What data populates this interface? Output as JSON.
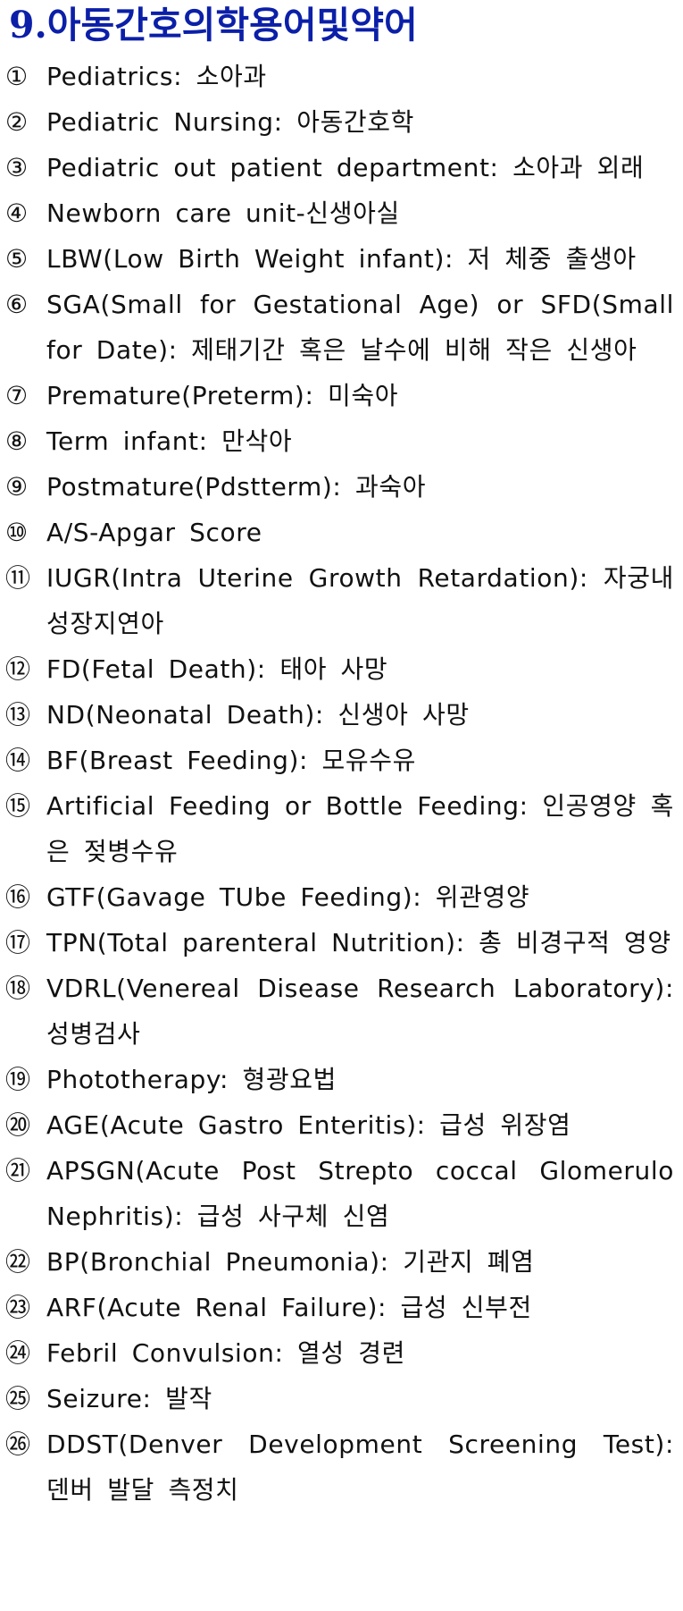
{
  "heading": {
    "title": "9.아동간호의학용어및약어"
  },
  "terms": [
    {
      "num": "①",
      "text": "Pediatrics: 소아과"
    },
    {
      "num": "②",
      "text": "Pediatric Nursing: 아동간호학"
    },
    {
      "num": "③",
      "text": "Pediatric out patient department: 소아과 외래"
    },
    {
      "num": "④",
      "text": "Newborn care unit-신생아실"
    },
    {
      "num": "⑤",
      "text": "LBW(Low Birth Weight infant): 저 체중 출생아"
    },
    {
      "num": "⑥",
      "text": "SGA(Small for Gestational Age) or SFD(Small for Date): 제태기간 혹은 날수에 비해 작은 신생아"
    },
    {
      "num": "⑦",
      "text": "Premature(Preterm): 미숙아"
    },
    {
      "num": "⑧",
      "text": "Term infant: 만삭아"
    },
    {
      "num": "⑨",
      "text": "Postmature(Pdstterm): 과숙아"
    },
    {
      "num": "⑩",
      "text": "A/S-Apgar Score"
    },
    {
      "num": "⑪",
      "text": "IUGR(Intra Uterine Growth Retardation): 자궁내 성장지연아"
    },
    {
      "num": "⑫",
      "text": "FD(Fetal Death): 태아 사망"
    },
    {
      "num": "⑬",
      "text": "ND(Neonatal Death): 신생아 사망"
    },
    {
      "num": "⑭",
      "text": "BF(Breast Feeding): 모유수유"
    },
    {
      "num": "⑮",
      "text": "Artificial Feeding or Bottle Feeding: 인공영양 혹은 젖병수유"
    },
    {
      "num": "⑯",
      "text": "GTF(Gavage TUbe Feeding): 위관영양"
    },
    {
      "num": "⑰",
      "text": "TPN(Total parenteral Nutrition): 총 비경구적 영양"
    },
    {
      "num": "⑱",
      "text": "VDRL(Venereal Disease Research Laboratory): 성병검사"
    },
    {
      "num": "⑲",
      "text": "Phototherapy: 형광요법"
    },
    {
      "num": "⑳",
      "text": "AGE(Acute Gastro Enteritis): 급성 위장염"
    },
    {
      "num": "㉑",
      "text": "APSGN(Acute Post Strepto coccal Glomerulo Nephritis): 급성 사구체 신염"
    },
    {
      "num": "㉒",
      "text": "BP(Bronchial Pneumonia): 기관지 폐염"
    },
    {
      "num": "㉓",
      "text": "ARF(Acute Renal Failure): 급성 신부전"
    },
    {
      "num": "㉔",
      "text": "Febril Convulsion: 열성 경련"
    },
    {
      "num": "㉕",
      "text": "Seizure: 발작"
    },
    {
      "num": "㉖",
      "text": "DDST(Denver Development Screening Test): 덴버 발달 측정치"
    }
  ]
}
